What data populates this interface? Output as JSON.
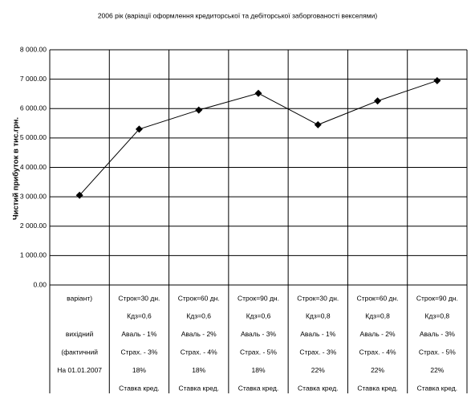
{
  "chart_data": {
    "type": "line",
    "title": "2006 рік (варіації оформлення кредиторської та дебіторської заборгованості векселями)",
    "y_label": "Чистий прибуток в тис.грн.",
    "categories": [
      [
        "варіант)",
        null,
        "вихідний",
        "(фактичний",
        "На 01.01.2007",
        null
      ],
      [
        "Строк=30 дн.",
        "Кдз=0,6",
        "Аваль - 1%",
        "Страх. - 3%",
        "18%",
        "Ставка кред."
      ],
      [
        "Строк=60 дн.",
        "Кдз=0,6",
        "Аваль - 2%",
        "Страх. - 4%",
        "18%",
        "Ставка кред."
      ],
      [
        "Строк=90 дн.",
        "Кдз=0,6",
        "Аваль - 3%",
        "Страх. - 5%",
        "18%",
        "Ставка кред."
      ],
      [
        "Строк=30 дн.",
        "Кдз=0,8",
        "Аваль - 1%",
        "Страх. - 3%",
        "22%",
        "Ставка кред."
      ],
      [
        "Строк=60 дн.",
        "Кдз=0,8",
        "Аваль - 2%",
        "Страх. - 4%",
        "22%",
        "Ставка кред."
      ],
      [
        "Строк=90 дн.",
        "Кдз=0,8",
        "Аваль - 3%",
        "Страх. - 5%",
        "22%",
        "Ставка кред."
      ]
    ],
    "values": [
      3050,
      5300,
      5950,
      6520,
      5450,
      6260,
      6950
    ],
    "color": "#000000",
    "ylim": [
      0,
      8000
    ],
    "yticks": [
      {
        "value": 0,
        "label": "0.00"
      },
      {
        "value": 1000,
        "label": "1 000.00"
      },
      {
        "value": 2000,
        "label": "2 000.00"
      },
      {
        "value": 3000,
        "label": "3 000.00"
      },
      {
        "value": 4000,
        "label": "4 000.00"
      },
      {
        "value": 5000,
        "label": "5 000.00"
      },
      {
        "value": 6000,
        "label": "6 000.00"
      },
      {
        "value": 7000,
        "label": "7 000.00"
      },
      {
        "value": 8000,
        "label": "8 000.00"
      }
    ],
    "grid": true
  }
}
